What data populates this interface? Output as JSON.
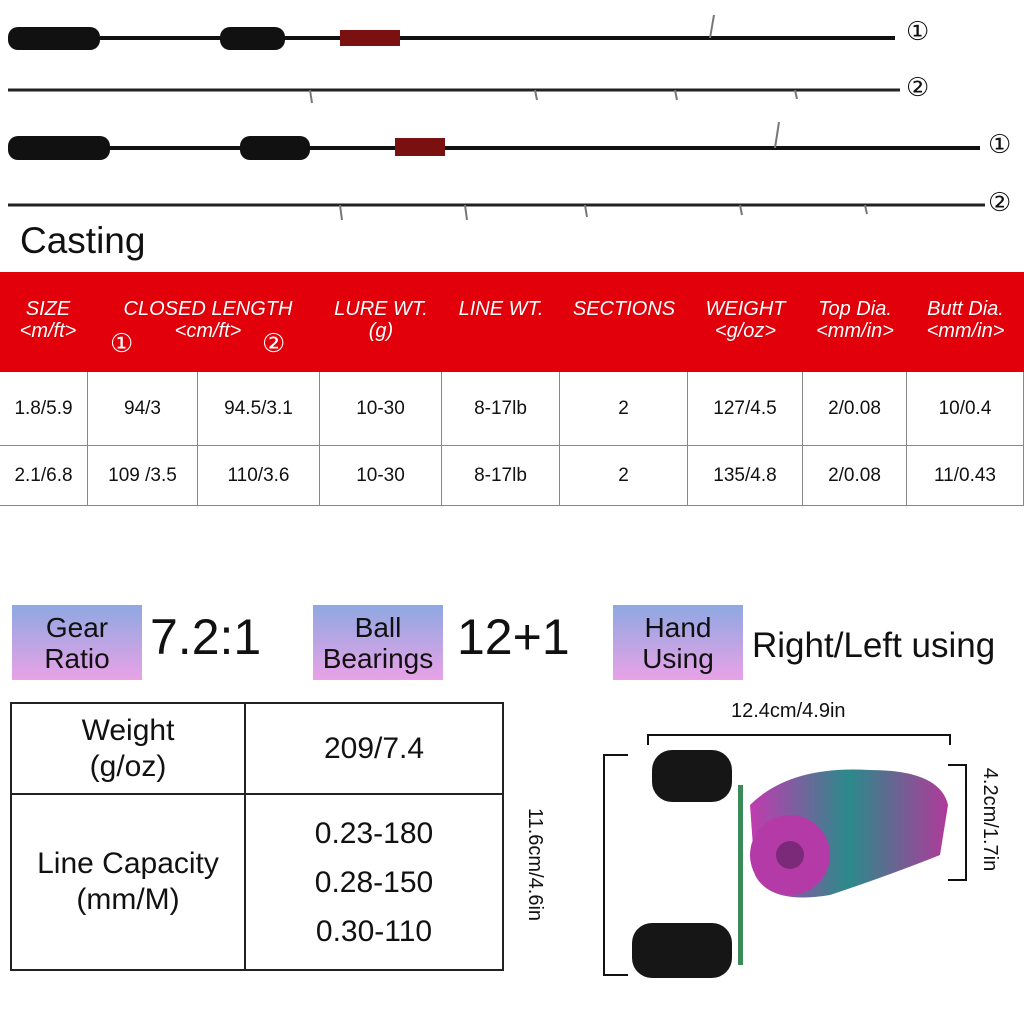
{
  "rod_labels": [
    "①",
    "②",
    "①",
    "②"
  ],
  "title": "Casting",
  "spec_table": {
    "headers": [
      {
        "name": "SIZE",
        "unit": "<m/ft>"
      },
      {
        "name": "CLOSED LENGTH",
        "unit": "<cm/ft>",
        "sub": [
          "①",
          "②"
        ]
      },
      {
        "name": "LURE WT.",
        "unit": "(g)"
      },
      {
        "name": "LINE WT."
      },
      {
        "name": "SECTIONS"
      },
      {
        "name": "WEIGHT",
        "unit": "<g/oz>"
      },
      {
        "name": "Top Dia.",
        "unit": "<mm/in>"
      },
      {
        "name": "Butt Dia.",
        "unit": "<mm/in>"
      }
    ],
    "rows": [
      [
        "1.8/5.9",
        "94/3",
        "94.5/3.1",
        "10-30",
        "8-17lb",
        "2",
        "127/4.5",
        "2/0.08",
        "10/0.4"
      ],
      [
        "2.1/6.8",
        "109 /3.5",
        "110/3.6",
        "10-30",
        "8-17lb",
        "2",
        "135/4.8",
        "2/0.08",
        "11/0.43"
      ]
    ]
  },
  "features": [
    {
      "label": [
        "Gear",
        "Ratio"
      ],
      "value": "7.2:1"
    },
    {
      "label": [
        "Ball",
        "Bearings"
      ],
      "value": "12+1"
    },
    {
      "label": [
        "Hand",
        "Using"
      ],
      "value": "Right/Left using"
    }
  ],
  "reel_table": {
    "rows": [
      {
        "label": [
          "Weight",
          "(g/oz)"
        ],
        "values": [
          "209/7.4"
        ]
      },
      {
        "label": [
          "Line Capacity",
          "(mm/M)"
        ],
        "values": [
          "0.23-180",
          "0.28-150",
          "0.30-110"
        ]
      }
    ]
  },
  "dimensions": {
    "width": "12.4cm/4.9in",
    "height": "11.6cm/4.6in",
    "depth": "4.2cm/1.7in"
  }
}
